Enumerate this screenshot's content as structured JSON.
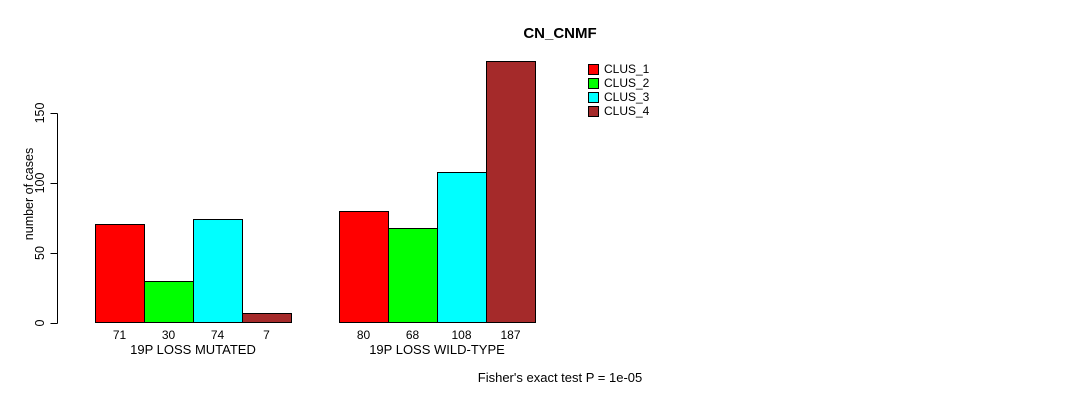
{
  "chart_data": {
    "type": "bar",
    "title": "CN_CNMF",
    "xlabel": "",
    "ylabel": "number of cases",
    "categories": [
      "19P LOSS MUTATED",
      "19P LOSS WILD-TYPE"
    ],
    "series": [
      {
        "name": "CLUS_1",
        "color": "#ff0000",
        "values": [
          71,
          80
        ]
      },
      {
        "name": "CLUS_2",
        "color": "#00ff00",
        "values": [
          30,
          68
        ]
      },
      {
        "name": "CLUS_3",
        "color": "#00ffff",
        "values": [
          74,
          108
        ]
      },
      {
        "name": "CLUS_4",
        "color": "#a52a2a",
        "values": [
          7,
          187
        ]
      }
    ],
    "yticks": [
      0,
      50,
      100,
      150
    ],
    "ylim": [
      0,
      190
    ],
    "grid": false,
    "legend_position": "top-right",
    "legend_entries": [
      "CLUS_1",
      "CLUS_2",
      "CLUS_3",
      "CLUS_4"
    ],
    "bar_value_labels_shown": true,
    "annotation": "Fisher's exact test P = 1e-05"
  }
}
